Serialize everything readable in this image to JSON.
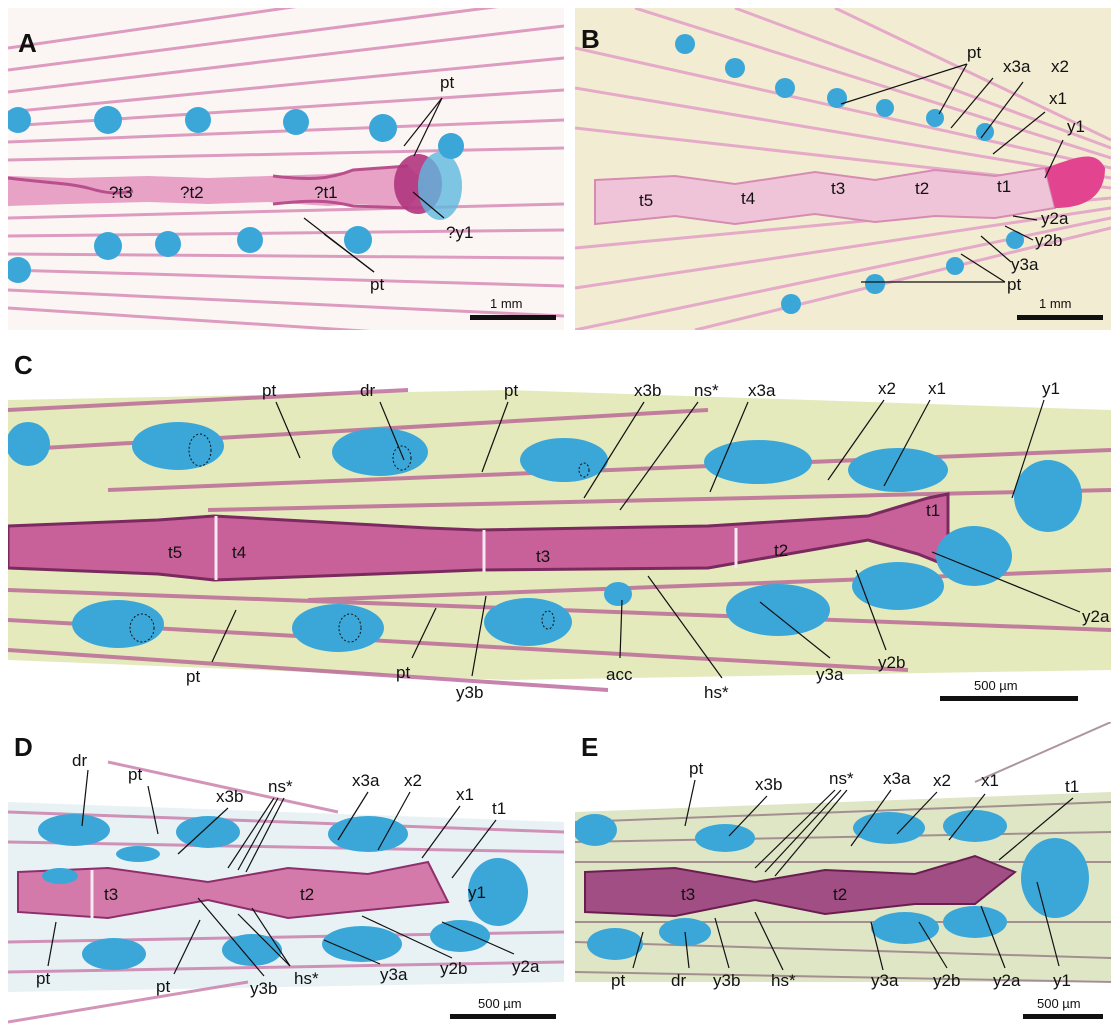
{
  "panels": [
    {
      "letter": "A",
      "scale": "1 mm",
      "labels": [
        "pt",
        "?t3",
        "?t2",
        "?t1",
        "?y1",
        "pt"
      ]
    },
    {
      "letter": "B",
      "scale": "1 mm",
      "labels": [
        "pt",
        "x3a",
        "x2",
        "x1",
        "y1",
        "t5",
        "t4",
        "t3",
        "t2",
        "t1",
        "y2a",
        "y2b",
        "y3a",
        "pt"
      ]
    },
    {
      "letter": "C",
      "scale": "500 µm",
      "labels": [
        "pt",
        "dr",
        "pt",
        "x3b",
        "ns*",
        "x3a",
        "x2",
        "x1",
        "y1",
        "t5",
        "t4",
        "t3",
        "t2",
        "t1",
        "y2a",
        "pt",
        "pt",
        "y3b",
        "acc",
        "hs*",
        "y3a",
        "y2b"
      ]
    },
    {
      "letter": "D",
      "scale": "500 µm",
      "labels": [
        "dr",
        "pt",
        "x3b",
        "ns*",
        "x3a",
        "x2",
        "x1",
        "t1",
        "t3",
        "t2",
        "y1",
        "pt",
        "pt",
        "y3b",
        "hs*",
        "y3a",
        "y2b",
        "y2a"
      ]
    },
    {
      "letter": "E",
      "scale": "500 µm",
      "labels": [
        "pt",
        "x3b",
        "ns*",
        "x3a",
        "x2",
        "x1",
        "t1",
        "t3",
        "t2",
        "pt",
        "dr",
        "y3b",
        "hs*",
        "y3a",
        "y2b",
        "y2a",
        "y1"
      ]
    }
  ],
  "colors": {
    "background": "#ffffff",
    "bone": "#c8609a",
    "bone_dark": "#8e2f6c",
    "cartilage": "#3aa7d8",
    "tissue_A": "#fbf6f3",
    "tissue_B": "#f2ecd2",
    "tissue_C": "#e2e8b6",
    "tissue_D": "#e8f2f4",
    "tissue_E": "#dfe6c6"
  }
}
